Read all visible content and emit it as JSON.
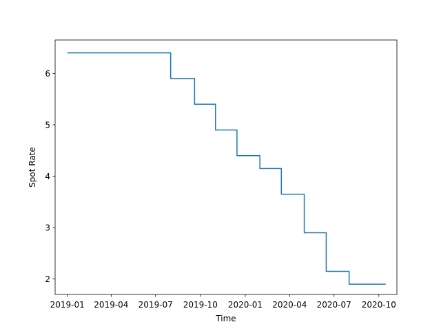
{
  "chart_data": {
    "type": "line",
    "title": "",
    "xlabel": "Time",
    "ylabel": "Spot Rate",
    "x_axis_type": "date",
    "xlim": [
      "2018-12-07",
      "2020-11-07"
    ],
    "ylim": [
      1.7,
      6.65
    ],
    "grid": false,
    "line_color": "#1f77b4",
    "x_ticks": [
      {
        "date": "2019-01-01",
        "label": "2019-01"
      },
      {
        "date": "2019-04-01",
        "label": "2019-04"
      },
      {
        "date": "2019-07-01",
        "label": "2019-07"
      },
      {
        "date": "2019-10-01",
        "label": "2019-10"
      },
      {
        "date": "2020-01-01",
        "label": "2020-01"
      },
      {
        "date": "2020-04-01",
        "label": "2020-04"
      },
      {
        "date": "2020-07-01",
        "label": "2020-07"
      },
      {
        "date": "2020-10-01",
        "label": "2020-10"
      }
    ],
    "y_ticks": [
      {
        "value": 2,
        "label": "2"
      },
      {
        "value": 3,
        "label": "3"
      },
      {
        "value": 4,
        "label": "4"
      },
      {
        "value": 5,
        "label": "5"
      },
      {
        "value": 6,
        "label": "6"
      }
    ],
    "series": [
      {
        "step": "post",
        "x": [
          "2019-01-01",
          "2019-08-01",
          "2019-09-19",
          "2019-11-01",
          "2019-12-15",
          "2020-01-31",
          "2020-03-15",
          "2020-05-01",
          "2020-06-15",
          "2020-08-01",
          "2020-10-15"
        ],
        "y": [
          6.4,
          5.9,
          5.4,
          4.9,
          4.4,
          4.15,
          3.65,
          2.9,
          2.15,
          1.9,
          1.9
        ]
      }
    ]
  }
}
